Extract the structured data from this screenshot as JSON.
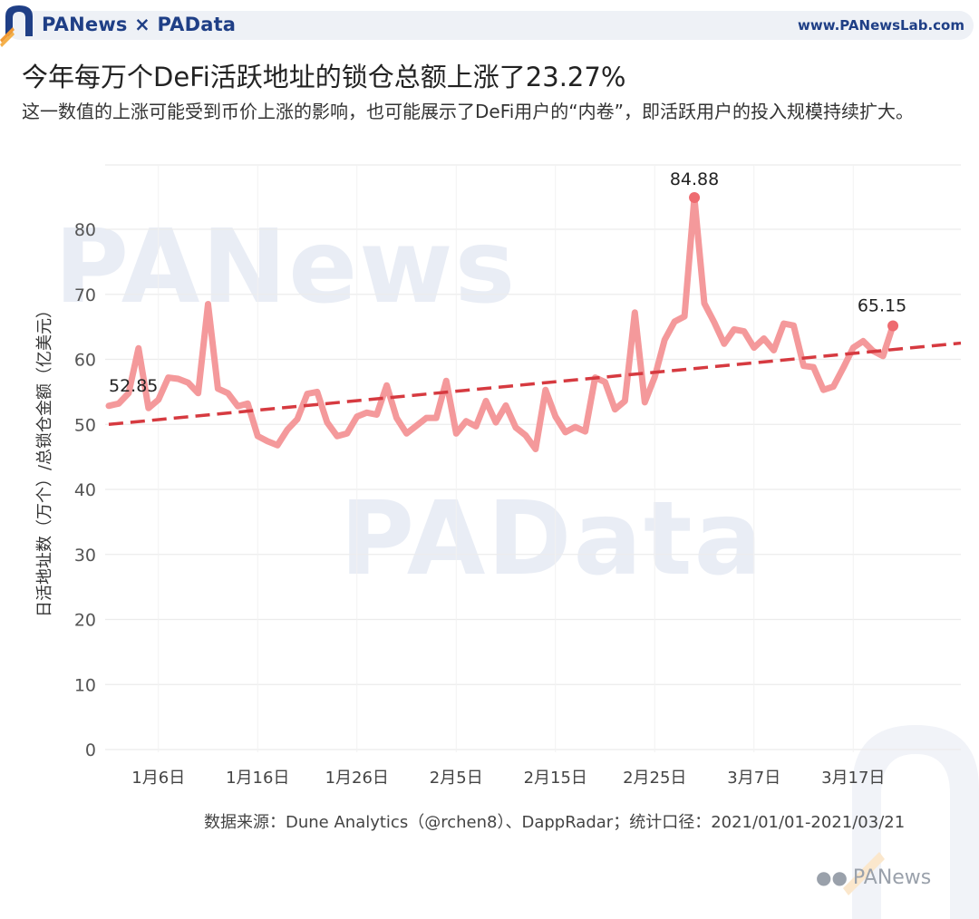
{
  "header": {
    "brand": "PANews × PAData",
    "site": "www.PANewsLab.com"
  },
  "title": "今年每万个DeFi活跃地址的锁仓总额上涨了23.27%",
  "subtitle": "这一数值的上涨可能受到币价上涨的影响，也可能展示了DeFi用户的“内卷”，即活跃用户的投入规模持续扩大。",
  "watermark": {
    "top": "PANews",
    "bottom": "PAData"
  },
  "source": "数据来源：Dune Analytics（@rchen8）、DappRadar；统计口径：2021/01/01-2021/03/21",
  "wechat": "PANews",
  "colors": {
    "line": "#f4999b",
    "trend": "#d63a40",
    "brand": "#1f3f86",
    "endpoint": "#ee6b70"
  },
  "chart_data": {
    "type": "line",
    "title": "今年每万个DeFi活跃地址的锁仓总额上涨了23.27%",
    "ylabel": "日活地址数（万个）/总锁仓金额（亿美元）",
    "ylim": [
      0,
      90
    ],
    "yticks": [
      0,
      10,
      20,
      30,
      40,
      50,
      60,
      70,
      80
    ],
    "grid": true,
    "x_start": "2021-01-01",
    "xticks": [
      {
        "label": "1月6日",
        "date": "2021-01-06"
      },
      {
        "label": "1月16日",
        "date": "2021-01-16"
      },
      {
        "label": "1月26日",
        "date": "2021-01-26"
      },
      {
        "label": "2月5日",
        "date": "2021-02-05"
      },
      {
        "label": "2月15日",
        "date": "2021-02-15"
      },
      {
        "label": "2月25日",
        "date": "2021-02-25"
      },
      {
        "label": "3月7日",
        "date": "2021-03-07"
      },
      {
        "label": "3月17日",
        "date": "2021-03-17"
      }
    ],
    "series": [
      {
        "values": [
          52.85,
          53.2,
          54.8,
          61.7,
          52.5,
          53.8,
          57.2,
          57.0,
          56.4,
          54.8,
          68.5,
          55.5,
          54.8,
          52.8,
          53.2,
          48.2,
          47.4,
          46.8,
          49.2,
          50.8,
          54.7,
          55.0,
          50.3,
          48.2,
          48.6,
          51.2,
          51.8,
          51.5,
          56.0,
          51.0,
          48.6,
          49.8,
          51.0,
          51.0,
          56.7,
          48.6,
          50.5,
          49.7,
          53.6,
          50.3,
          52.9,
          49.5,
          48.3,
          46.2,
          55.3,
          51.2,
          48.8,
          49.6,
          48.9,
          57.2,
          56.5,
          52.3,
          53.6,
          67.2,
          53.4,
          57.3,
          63.0,
          65.8,
          66.6,
          84.88,
          68.6,
          65.7,
          62.4,
          64.6,
          64.3,
          61.8,
          63.2,
          61.4,
          65.5,
          65.2,
          59.0,
          58.8,
          55.3,
          55.8,
          58.7,
          61.8,
          62.8,
          61.3,
          60.5,
          65.15
        ]
      }
    ],
    "trend": {
      "start": 50.0,
      "end": 62.5
    },
    "annotations": [
      {
        "label": "52.85",
        "index": 0
      },
      {
        "label": "84.88",
        "index": 59
      },
      {
        "label": "65.15",
        "index": 79
      }
    ]
  }
}
